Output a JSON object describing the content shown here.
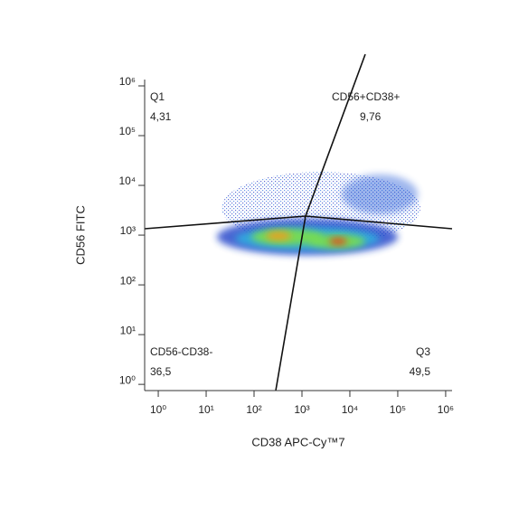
{
  "chart_data": {
    "type": "scatter",
    "x_label": "CD38 APC-Cy™7",
    "y_label": "CD56 FITC",
    "xscale": "log",
    "yscale": "log",
    "xlim": [
      0.52,
      1360000
    ],
    "ylim": [
      0.75,
      1340000
    ],
    "xticks": [
      {
        "value": 1,
        "label": "10⁰"
      },
      {
        "value": 10,
        "label": "10¹"
      },
      {
        "value": 100,
        "label": "10²"
      },
      {
        "value": 1000,
        "label": "10³"
      },
      {
        "value": 10000,
        "label": "10⁴"
      },
      {
        "value": 100000,
        "label": "10⁵"
      },
      {
        "value": 1000000,
        "label": "10⁶"
      }
    ],
    "yticks": [
      {
        "value": 1,
        "label": "10⁰"
      },
      {
        "value": 10,
        "label": "10¹"
      },
      {
        "value": 100,
        "label": "10²"
      },
      {
        "value": 1000,
        "label": "10³"
      },
      {
        "value": 10000,
        "label": "10⁴"
      },
      {
        "value": 100000,
        "label": "10⁵"
      },
      {
        "value": 1000000,
        "label": "10⁶"
      }
    ],
    "quadrants": {
      "categories": [
        "Q1",
        "CD56+CD38+",
        "CD56-CD38-",
        "Q3"
      ],
      "values": [
        4.31,
        9.76,
        36.5,
        49.5
      ],
      "value_labels": [
        "4,31",
        "9,76",
        "36,5",
        "49,5"
      ]
    }
  }
}
